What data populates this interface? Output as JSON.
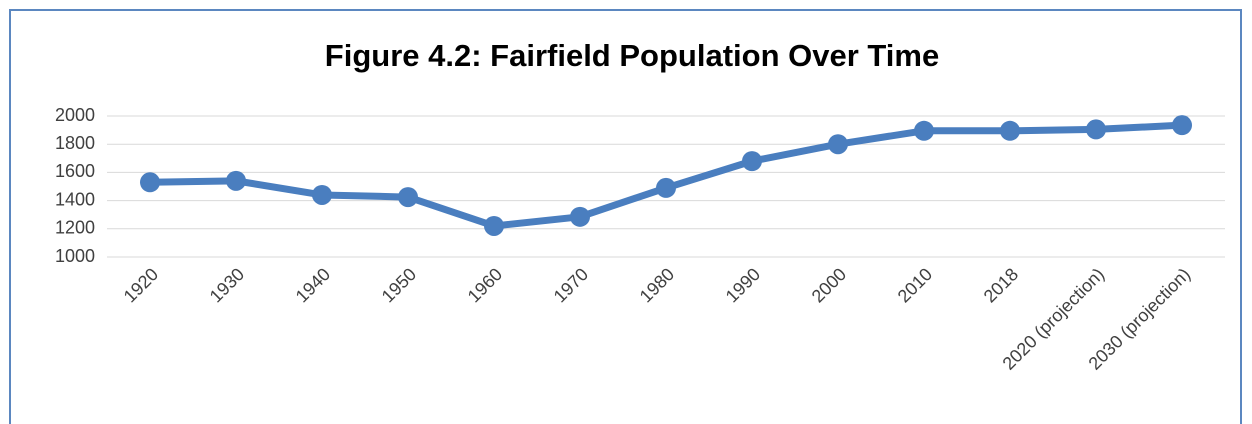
{
  "chart_data": {
    "type": "line",
    "title": "Figure 4.2: Fairfield Population Over Time",
    "categories": [
      "1920",
      "1930",
      "1940",
      "1950",
      "1960",
      "1970",
      "1980",
      "1990",
      "2000",
      "2010",
      "2018",
      "2020 (projection)",
      "2030 (projection)"
    ],
    "series": [
      {
        "name": "Population",
        "color": "#4a7ebf",
        "values": [
          1530,
          1540,
          1440,
          1425,
          1220,
          1285,
          1490,
          1680,
          1800,
          1895,
          1895,
          1905,
          1935
        ]
      }
    ],
    "ylim": [
      1000,
      2000
    ],
    "yticks": [
      1000,
      1200,
      1400,
      1600,
      1800,
      2000
    ],
    "grid": true
  }
}
